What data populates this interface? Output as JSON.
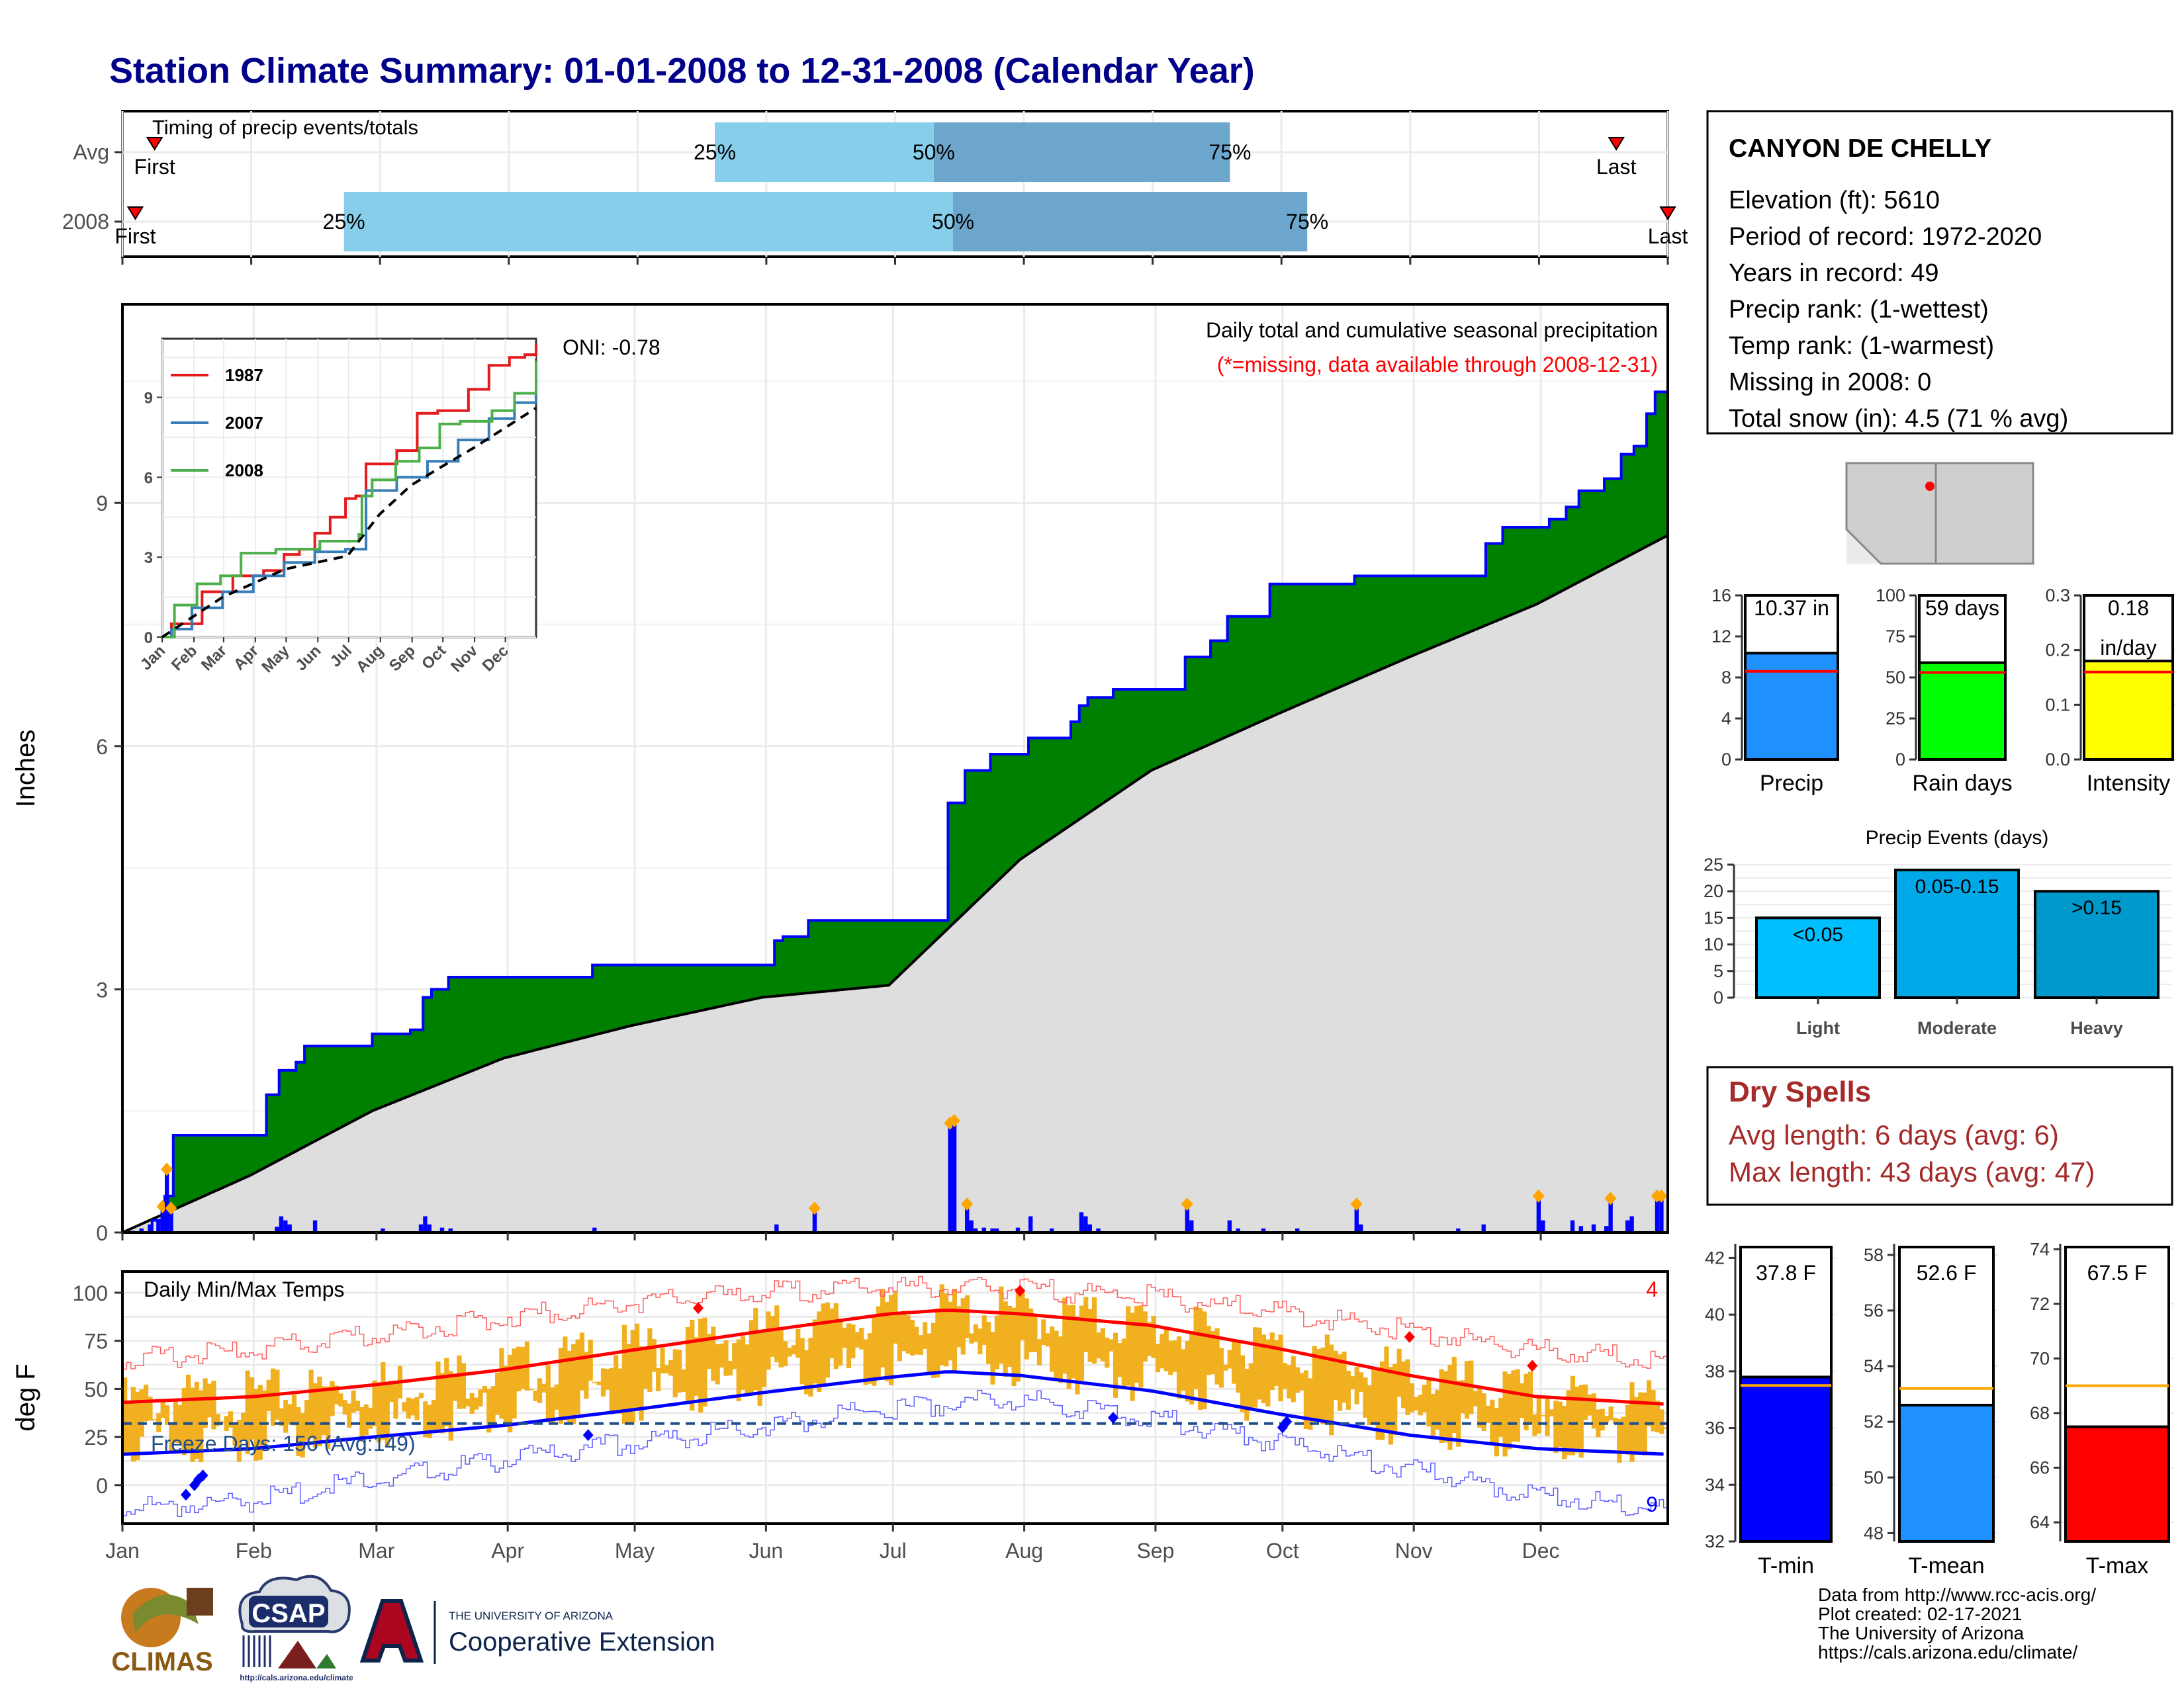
{
  "title": "Station Climate Summary: 01-01-2008 to 12-31-2008 (Calendar Year)",
  "colors": {
    "title": "#00008b",
    "green": "#008000",
    "blue_line": "#0000ff",
    "gray_fill": "#dedede",
    "light_blue": "#87ceeb",
    "steel_blue": "#6ca6cd",
    "orange": "#f0b020",
    "red": "#ff0000",
    "dry_red": "#a52a2a"
  },
  "timing": {
    "label": "Timing of precip events/totals",
    "rows": [
      {
        "name": "Avg",
        "first": 0.25,
        "p25": 4.6,
        "p50": 6.3,
        "p75": 8.6,
        "last": 11.6,
        "first_label": "First",
        "last_label": "Last",
        "p25_label": "25%",
        "p50_label": "50%",
        "p75_label": "75%"
      },
      {
        "name": "2008",
        "first": 0.1,
        "p25": 1.72,
        "p50": 6.45,
        "p75": 9.2,
        "last": 12.0,
        "first_label": "First",
        "last_label": "Last",
        "p25_label": "25%",
        "p50_label": "50%",
        "p75_label": "75%"
      }
    ]
  },
  "info": {
    "station": "CANYON DE CHELLY",
    "lines": [
      "Elevation (ft): 5610",
      "Period of record: 1972-2020",
      "Years in record: 49",
      "Precip rank:  (1-wettest)",
      "Temp rank:  (1-warmest)",
      "Missing in 2008: 0",
      "Total snow (in): 4.5 (71 % avg)"
    ]
  },
  "precip_panel": {
    "ylabel": "Inches",
    "oni": "ONI: -0.78",
    "subtitle": "Daily total and cumulative seasonal precipitation",
    "missing_note": "(*=missing, data available through 2008-12-31)",
    "yticks": [
      0,
      3,
      6,
      9
    ]
  },
  "inset": {
    "yticks": [
      0,
      3,
      6,
      9
    ],
    "xticks": [
      "Jan",
      "Feb",
      "Mar",
      "Apr",
      "May",
      "Jun",
      "Jul",
      "Aug",
      "Sep",
      "Oct",
      "Nov",
      "Dec"
    ],
    "legend": [
      {
        "name": "1987",
        "color": "#e41a1c"
      },
      {
        "name": "2007",
        "color": "#377eb8"
      },
      {
        "name": "2008",
        "color": "#4daf4a"
      }
    ]
  },
  "temp_panel": {
    "ylabel": "deg F",
    "label": "Daily Min/Max Temps",
    "freeze": "Freeze Days: 156 (Avg:149)",
    "record_high_count": "4",
    "record_low_count": "9",
    "yticks": [
      0,
      25,
      50,
      75,
      100
    ]
  },
  "months": [
    "Jan",
    "Feb",
    "Mar",
    "Apr",
    "May",
    "Jun",
    "Jul",
    "Aug",
    "Sep",
    "Oct",
    "Nov",
    "Dec"
  ],
  "summary_bars": [
    {
      "label": "Precip",
      "value": 10.37,
      "value_label": "10.37 in",
      "avg": 8.6,
      "ymax": 16,
      "yticks": [
        0,
        4,
        8,
        12,
        16
      ],
      "color": "#1e90ff"
    },
    {
      "label": "Rain days",
      "value": 59,
      "value_label": "59 days",
      "avg": 53,
      "ymax": 100,
      "yticks": [
        0,
        25,
        50,
        75,
        100
      ],
      "color": "#00ff00"
    },
    {
      "label": "Intensity",
      "value": 0.18,
      "value_label": "0.18",
      "value_label2": "in/day",
      "avg": 0.16,
      "ymax": 0.3,
      "yticks": [
        "0.0",
        "0.1",
        "0.2",
        "0.3"
      ],
      "color": "#ffff00"
    }
  ],
  "events": {
    "title": "Precip Events (days)",
    "yticks": [
      0,
      5,
      10,
      15,
      20,
      25
    ],
    "bars": [
      {
        "category": "Light",
        "label": "<0.05",
        "value": 15,
        "color": "#00bfff"
      },
      {
        "category": "Moderate",
        "label": "0.05-0.15",
        "value": 24,
        "color": "#00a8e8"
      },
      {
        "category": "Heavy",
        "label": ">0.15",
        "value": 20,
        "color": "#0099cc"
      }
    ]
  },
  "dry_spells": {
    "title": "Dry Spells",
    "avg": "Avg length: 6 days (avg: 6)",
    "max": "Max length: 43 days (avg: 47)"
  },
  "temp_bars": [
    {
      "label": "T-min",
      "value": 37.8,
      "value_label": "37.8 F",
      "avg": 37.5,
      "ymin": 32,
      "ymax": 42.5,
      "yticks": [
        32,
        34,
        36,
        38,
        40,
        42
      ],
      "color": "#0000ff"
    },
    {
      "label": "T-mean",
      "value": 52.6,
      "value_label": "52.6 F",
      "avg": 53.2,
      "ymin": 47.7,
      "ymax": 58.4,
      "yticks": [
        48,
        50,
        52,
        54,
        56,
        58
      ],
      "color": "#1e90ff"
    },
    {
      "label": "T-max",
      "value": 67.5,
      "value_label": "67.5 F",
      "avg": 69.0,
      "ymin": 63.3,
      "ymax": 74.2,
      "yticks": [
        64,
        66,
        68,
        70,
        72,
        74
      ],
      "color": "#ff0000"
    }
  ],
  "footer": {
    "lines": [
      "Data from http://www.rcc-acis.org/",
      "Plot created: 02-17-2021",
      "The University of Arizona",
      "https://cals.arizona.edu/climate/"
    ]
  },
  "logos": {
    "climas": "CLIMAS",
    "csap": "CSAP",
    "csap_url": "http://cals.arizona.edu/climate",
    "ua_small": "THE UNIVERSITY OF ARIZONA",
    "ua_big": "Cooperative Extension"
  },
  "chart_data": {
    "type": "area",
    "x_unit": "day of year 2008",
    "cumulative_2008": [
      [
        1,
        0
      ],
      [
        8,
        0.15
      ],
      [
        11,
        0.45
      ],
      [
        13,
        1.2
      ],
      [
        30,
        1.2
      ],
      [
        35,
        1.7
      ],
      [
        38,
        2.0
      ],
      [
        42,
        2.1
      ],
      [
        44,
        2.3
      ],
      [
        58,
        2.3
      ],
      [
        60,
        2.45
      ],
      [
        66,
        2.45
      ],
      [
        69,
        2.5
      ],
      [
        72,
        2.9
      ],
      [
        74,
        3.0
      ],
      [
        78,
        3.15
      ],
      [
        105,
        3.15
      ],
      [
        112,
        3.3
      ],
      [
        152,
        3.3
      ],
      [
        155,
        3.6
      ],
      [
        157,
        3.65
      ],
      [
        163,
        3.85
      ],
      [
        193,
        3.85
      ],
      [
        196,
        5.3
      ],
      [
        200,
        5.7
      ],
      [
        206,
        5.9
      ],
      [
        212,
        5.9
      ],
      [
        215,
        6.1
      ],
      [
        225,
        6.3
      ],
      [
        227,
        6.5
      ],
      [
        229,
        6.6
      ],
      [
        235,
        6.7
      ],
      [
        250,
        6.7
      ],
      [
        252,
        7.1
      ],
      [
        258,
        7.3
      ],
      [
        262,
        7.6
      ],
      [
        264,
        7.6
      ],
      [
        272,
        8.0
      ],
      [
        289,
        8.0
      ],
      [
        292,
        8.1
      ],
      [
        320,
        8.1
      ],
      [
        323,
        8.5
      ],
      [
        327,
        8.7
      ],
      [
        335,
        8.7
      ],
      [
        338,
        8.8
      ],
      [
        342,
        8.95
      ],
      [
        345,
        9.15
      ],
      [
        351,
        9.3
      ],
      [
        355,
        9.6
      ],
      [
        358,
        9.7
      ],
      [
        361,
        10.1
      ],
      [
        363,
        10.37
      ],
      [
        366,
        10.37
      ]
    ],
    "cumulative_avg": [
      [
        1,
        0
      ],
      [
        31,
        0.7
      ],
      [
        60,
        1.5
      ],
      [
        91,
        2.15
      ],
      [
        121,
        2.55
      ],
      [
        152,
        2.9
      ],
      [
        182,
        3.05
      ],
      [
        213,
        4.6
      ],
      [
        244,
        5.7
      ],
      [
        274,
        6.4
      ],
      [
        305,
        7.1
      ],
      [
        335,
        7.75
      ],
      [
        366,
        8.6
      ]
    ],
    "daily_precip": [
      [
        3,
        0.02
      ],
      [
        5,
        0.05
      ],
      [
        7,
        0.1
      ],
      [
        9,
        0.15
      ],
      [
        10,
        0.32
      ],
      [
        11,
        0.78
      ],
      [
        12,
        0.3
      ],
      [
        37,
        0.07
      ],
      [
        38,
        0.2
      ],
      [
        39,
        0.15
      ],
      [
        40,
        0.1
      ],
      [
        46,
        0.15
      ],
      [
        62,
        0.05
      ],
      [
        71,
        0.1
      ],
      [
        72,
        0.2
      ],
      [
        73,
        0.1
      ],
      [
        76,
        0.06
      ],
      [
        78,
        0.05
      ],
      [
        112,
        0.06
      ],
      [
        155,
        0.1
      ],
      [
        164,
        0.3
      ],
      [
        196,
        1.35
      ],
      [
        197,
        1.38
      ],
      [
        200,
        0.35
      ],
      [
        201,
        0.15
      ],
      [
        202,
        0.05
      ],
      [
        204,
        0.06
      ],
      [
        206,
        0.05
      ],
      [
        207,
        0.05
      ],
      [
        212,
        0.06
      ],
      [
        215,
        0.2
      ],
      [
        220,
        0.05
      ],
      [
        227,
        0.25
      ],
      [
        228,
        0.2
      ],
      [
        229,
        0.1
      ],
      [
        231,
        0.05
      ],
      [
        252,
        0.35
      ],
      [
        253,
        0.15
      ],
      [
        262,
        0.15
      ],
      [
        264,
        0.05
      ],
      [
        270,
        0.05
      ],
      [
        278,
        0.05
      ],
      [
        292,
        0.35
      ],
      [
        293,
        0.1
      ],
      [
        316,
        0.05
      ],
      [
        322,
        0.1
      ],
      [
        335,
        0.45
      ],
      [
        336,
        0.15
      ],
      [
        343,
        0.15
      ],
      [
        345,
        0.08
      ],
      [
        348,
        0.1
      ],
      [
        351,
        0.08
      ],
      [
        352,
        0.42
      ],
      [
        356,
        0.15
      ],
      [
        357,
        0.2
      ],
      [
        363,
        0.45
      ],
      [
        364,
        0.45
      ]
    ],
    "inset_series": [
      {
        "name": "1987",
        "points": [
          [
            1,
            0
          ],
          [
            10,
            0.5
          ],
          [
            40,
            1.7
          ],
          [
            70,
            2.3
          ],
          [
            100,
            2.5
          ],
          [
            120,
            3.1
          ],
          [
            135,
            3.3
          ],
          [
            150,
            3.9
          ],
          [
            165,
            4.5
          ],
          [
            180,
            5.2
          ],
          [
            190,
            5.3
          ],
          [
            200,
            6.5
          ],
          [
            230,
            7.0
          ],
          [
            250,
            8.4
          ],
          [
            270,
            8.5
          ],
          [
            300,
            9.3
          ],
          [
            320,
            10.2
          ],
          [
            340,
            10.5
          ],
          [
            355,
            10.6
          ],
          [
            366,
            11.0
          ]
        ]
      },
      {
        "name": "2007",
        "points": [
          [
            1,
            0
          ],
          [
            10,
            0.3
          ],
          [
            30,
            1.1
          ],
          [
            60,
            1.7
          ],
          [
            90,
            2.3
          ],
          [
            120,
            2.8
          ],
          [
            150,
            3.2
          ],
          [
            180,
            3.3
          ],
          [
            200,
            5.5
          ],
          [
            230,
            6.0
          ],
          [
            260,
            6.6
          ],
          [
            290,
            7.4
          ],
          [
            320,
            8.2
          ],
          [
            345,
            8.8
          ],
          [
            366,
            9.6
          ]
        ]
      },
      {
        "name": "2008",
        "points": [
          [
            1,
            0
          ],
          [
            13,
            1.2
          ],
          [
            35,
            2.0
          ],
          [
            58,
            2.3
          ],
          [
            78,
            3.15
          ],
          [
            105,
            3.15
          ],
          [
            112,
            3.3
          ],
          [
            155,
            3.6
          ],
          [
            193,
            3.85
          ],
          [
            196,
            5.3
          ],
          [
            206,
            5.9
          ],
          [
            229,
            6.6
          ],
          [
            252,
            7.1
          ],
          [
            272,
            8.0
          ],
          [
            292,
            8.1
          ],
          [
            323,
            8.5
          ],
          [
            345,
            9.15
          ],
          [
            366,
            10.37
          ]
        ]
      },
      {
        "name": "avg",
        "points": [
          [
            1,
            0
          ],
          [
            60,
            1.5
          ],
          [
            121,
            2.55
          ],
          [
            182,
            3.05
          ],
          [
            213,
            4.6
          ],
          [
            244,
            5.7
          ],
          [
            274,
            6.4
          ],
          [
            305,
            7.1
          ],
          [
            366,
            8.6
          ]
        ]
      }
    ],
    "temp_normal_max": [
      [
        1,
        43
      ],
      [
        32,
        46
      ],
      [
        60,
        52
      ],
      [
        91,
        60
      ],
      [
        121,
        70
      ],
      [
        152,
        80
      ],
      [
        182,
        89
      ],
      [
        196,
        91
      ],
      [
        213,
        89
      ],
      [
        244,
        83
      ],
      [
        274,
        71
      ],
      [
        305,
        57
      ],
      [
        335,
        46
      ],
      [
        366,
        42
      ]
    ],
    "temp_normal_min": [
      [
        1,
        16
      ],
      [
        32,
        19
      ],
      [
        60,
        25
      ],
      [
        91,
        31
      ],
      [
        121,
        39
      ],
      [
        152,
        48
      ],
      [
        182,
        56
      ],
      [
        196,
        59
      ],
      [
        213,
        57
      ],
      [
        244,
        49
      ],
      [
        274,
        37
      ],
      [
        305,
        26
      ],
      [
        335,
        19
      ],
      [
        366,
        16
      ]
    ],
    "temp_record_max": [
      [
        1,
        65
      ],
      [
        32,
        70
      ],
      [
        60,
        78
      ],
      [
        91,
        87
      ],
      [
        121,
        95
      ],
      [
        152,
        100
      ],
      [
        182,
        103
      ],
      [
        213,
        102
      ],
      [
        244,
        98
      ],
      [
        274,
        90
      ],
      [
        305,
        80
      ],
      [
        335,
        70
      ],
      [
        366,
        65
      ]
    ],
    "temp_record_min": [
      [
        1,
        -12
      ],
      [
        32,
        -8
      ],
      [
        60,
        3
      ],
      [
        91,
        13
      ],
      [
        121,
        22
      ],
      [
        152,
        30
      ],
      [
        182,
        40
      ],
      [
        213,
        45
      ],
      [
        244,
        35
      ],
      [
        274,
        22
      ],
      [
        305,
        8
      ],
      [
        335,
        -5
      ],
      [
        366,
        -12
      ]
    ],
    "freeze_line": 32
  }
}
